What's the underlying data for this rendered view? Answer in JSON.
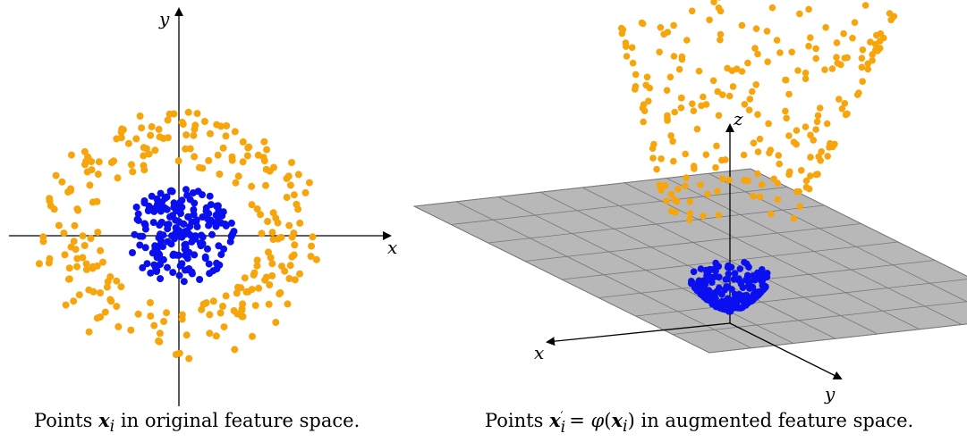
{
  "left_panel": {
    "x_label": "x",
    "y_label": "y",
    "caption": {
      "prefix": "Points",
      "symbol_bold": "x",
      "subscript": "i",
      "suffix": "in original feature space."
    }
  },
  "right_panel": {
    "x_label": "x",
    "y_label": "y",
    "z_label": "z",
    "caption": {
      "prefix": "Points",
      "symbol_bold": "x",
      "prime_sub": "i",
      "equals": "=",
      "phi": "φ",
      "arg_bold": "x",
      "arg_sub": "i",
      "suffix": "in augmented feature space."
    }
  },
  "colors": {
    "inner_class": "#0a0ff0",
    "outer_class": "#f7a50c",
    "plane": "#b8b8b8",
    "plane_grid": "#777777",
    "axis": "#000000"
  }
}
